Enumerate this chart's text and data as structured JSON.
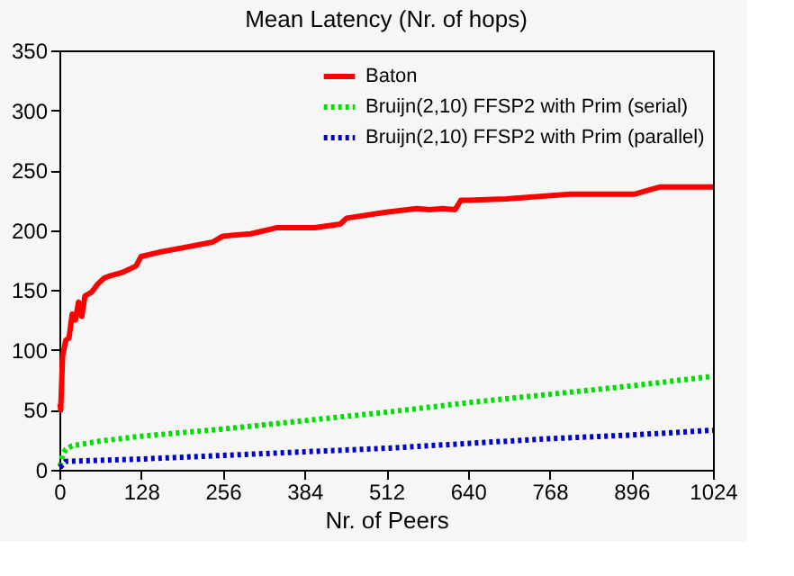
{
  "chart_data": {
    "type": "line",
    "title": "Mean Latency (Nr. of hops)",
    "xlabel": "Nr. of Peers",
    "xlim": [
      0,
      1024
    ],
    "xticks": [
      0,
      128,
      256,
      384,
      512,
      640,
      768,
      896,
      {
        "value": 1024,
        "label": "1024"
      }
    ],
    "ylim": [
      0,
      350
    ],
    "yticks": [
      0,
      50,
      100,
      150,
      200,
      250,
      300,
      350
    ],
    "grid": false,
    "legend": "top right",
    "marker": "none",
    "series": [
      {
        "name": "Baton",
        "color": "#ff0000",
        "line_style": "solid",
        "x": [
          1,
          2,
          5,
          10,
          15,
          20,
          25,
          30,
          35,
          40,
          50,
          60,
          70,
          80,
          100,
          120,
          128,
          160,
          200,
          240,
          256,
          300,
          340,
          400,
          440,
          450,
          512,
          560,
          580,
          600,
          620,
          629,
          640,
          700,
          800,
          900,
          940,
          980,
          1024
        ],
        "values": [
          55,
          50,
          95,
          108,
          110,
          130,
          125,
          140,
          128,
          145,
          148,
          155,
          160,
          162,
          165,
          170,
          178,
          182,
          186,
          190,
          195,
          197,
          202,
          202,
          205,
          210,
          215,
          218,
          217,
          218,
          217,
          225,
          225,
          226,
          230,
          230,
          236,
          236,
          236
        ]
      },
      {
        "name": "Bruijn(2,10) FFSP2 with Prim (serial)",
        "color": "#00dd00",
        "line_style": "dotted",
        "x": [
          1,
          5,
          10,
          20,
          64,
          128,
          256,
          384,
          512,
          640,
          768,
          896,
          1024
        ],
        "values": [
          3,
          12,
          17,
          20,
          24,
          28,
          34,
          41,
          48,
          56,
          63,
          70,
          78
        ]
      },
      {
        "name": "Bruijn(2,10) FFSP2 with Prim (parallel)",
        "color": "#0000cc",
        "line_style": "dotted",
        "x": [
          1,
          10,
          128,
          256,
          384,
          512,
          640,
          768,
          896,
          1024
        ],
        "values": [
          2,
          7,
          9,
          12,
          15,
          18,
          22,
          26,
          29,
          33
        ]
      }
    ]
  }
}
